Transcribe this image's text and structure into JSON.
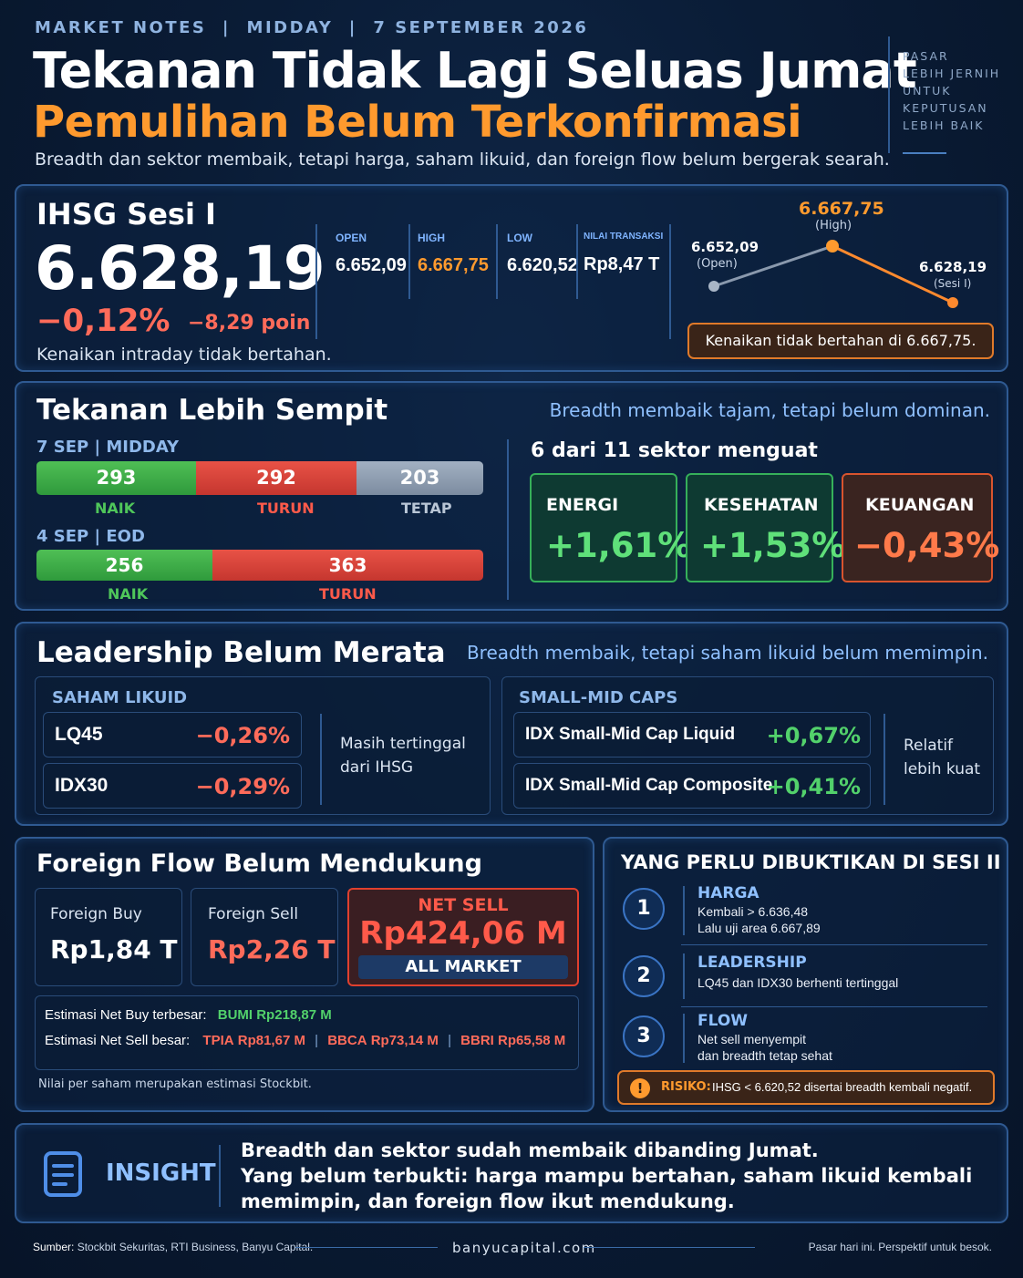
{
  "header": {
    "kicker": "MARKET NOTES  |  MIDDAY  |  7 SEPTEMBER 2026",
    "title": "Tekanan Tidak Lagi Seluas Jumat",
    "subtitle": "Pemulihan Belum Terkonfirmasi",
    "description": "Breadth dan sektor membaik, tetapi harga, saham likuid, dan foreign flow belum bergerak searah.",
    "tagline": [
      "PASAR",
      "LEBIH JERNIH",
      "UNTUK",
      "KEPUTUSAN",
      "LEBIH BAIK"
    ]
  },
  "ihsg": {
    "label": "IHSG Sesi I",
    "value": "6.628,19",
    "change_pct": "−0,12%",
    "change_pts": "−8,29 poin",
    "note": "Kenaikan intraday tidak bertahan.",
    "stats": [
      {
        "label": "OPEN",
        "value": "6.652,09"
      },
      {
        "label": "HIGH",
        "value": "6.667,75"
      },
      {
        "label": "LOW",
        "value": "6.620,52"
      },
      {
        "label": "NILAI TRANSAKSI",
        "value": "Rp8,47 T"
      }
    ],
    "chart": {
      "high_value": "6.667,75",
      "high_label": "(High)",
      "open_value": "6.652,09",
      "open_label": "(Open)",
      "close_value": "6.628,19",
      "close_label": "(Sesi I)",
      "callout": "Kenaikan tidak bertahan di 6.667,75."
    }
  },
  "breadth": {
    "title": "Tekanan Lebih Sempit",
    "subtitle": "Breadth membaik tajam, tetapi belum dominan.",
    "today_label": "7 SEP | MIDDAY",
    "today": [
      {
        "value": 293,
        "label": "NAIK",
        "color": "#3fae4a"
      },
      {
        "value": 292,
        "label": "TURUN",
        "color": "#d9423c"
      },
      {
        "value": 203,
        "label": "TETAP",
        "color": "#8c9cb0"
      }
    ],
    "prev_label": "4 SEP | EOD",
    "prev": [
      {
        "value": 256,
        "label": "NAIK",
        "color": "#3fae4a"
      },
      {
        "value": 363,
        "label": "TURUN",
        "color": "#d9423c"
      }
    ],
    "sector_heading": "6 dari 11 sektor menguat",
    "sectors": [
      {
        "name": "ENERGI",
        "value": "+1,61%"
      },
      {
        "name": "KESEHATAN",
        "value": "+1,53%"
      },
      {
        "name": "KEUANGAN",
        "value": "−0,43%"
      }
    ]
  },
  "leadership": {
    "title": "Leadership Belum Merata",
    "subtitle": "Breadth membaik, tetapi saham likuid belum memimpin.",
    "liquid_heading": "SAHAM LIKUID",
    "liquid": [
      {
        "name": "LQ45",
        "value": "−0,26%"
      },
      {
        "name": "IDX30",
        "value": "−0,29%"
      }
    ],
    "liquid_note": [
      "Masih tertinggal",
      "dari IHSG"
    ],
    "smallmid_heading": "SMALL-MID CAPS",
    "smallmid": [
      {
        "name": "IDX Small-Mid Cap Liquid",
        "value": "+0,67%"
      },
      {
        "name": "IDX Small-Mid Cap Composite",
        "value": "+0,41%"
      }
    ],
    "smallmid_note": [
      "Relatif",
      "lebih kuat"
    ]
  },
  "foreign": {
    "title": "Foreign Flow Belum Mendukung",
    "buy_label": "Foreign Buy",
    "buy_value": "Rp1,84 T",
    "sell_label": "Foreign Sell",
    "sell_value": "Rp2,26 T",
    "net_label": "NET SELL",
    "net_value": "Rp424,06 M",
    "net_scope": "ALL MARKET",
    "netbuy_label": "Estimasi Net Buy terbesar:",
    "netbuy_item": "BUMI Rp218,87 M",
    "netsell_label": "Estimasi Net Sell besar:",
    "netsell_items": [
      {
        "code": "TPIA",
        "value": "Rp81,67 M"
      },
      {
        "code": "BBCA",
        "value": "Rp73,14 M"
      },
      {
        "code": "BBRI",
        "value": "Rp65,58 M"
      }
    ],
    "footnote": "Nilai per saham merupakan estimasi Stockbit."
  },
  "checklist": {
    "title": "YANG PERLU DIBUKTIKAN DI SESI II",
    "items": [
      {
        "num": "1",
        "head": "HARGA",
        "line1": "Kembali > 6.636,48",
        "line2": "Lalu uji area 6.667,89"
      },
      {
        "num": "2",
        "head": "LEADERSHIP",
        "line1": "LQ45 dan IDX30 berhenti tertinggal",
        "line2": ""
      },
      {
        "num": "3",
        "head": "FLOW",
        "line1": "Net sell menyempit",
        "line2": "dan breadth tetap sehat"
      }
    ],
    "risk_label": "RISIKO:",
    "risk_text": "IHSG < 6.620,52 disertai breadth kembali negatif."
  },
  "insight": {
    "label": "INSIGHT",
    "line1": "Breadth dan sektor sudah membaik dibanding Jumat.",
    "line2": "Yang belum terbukti:  harga mampu bertahan, saham likuid kembali",
    "line3": "memimpin, dan foreign flow ikut mendukung."
  },
  "footer": {
    "source_label": "Sumber:",
    "source_text": "Stockbit Sekuritas, RTI Business, Banyu Capital.",
    "site": "banyucapital.com",
    "motto": "Pasar hari ini. Perspektif untuk besok."
  },
  "colors": {
    "accent_orange": "#ff9a2e",
    "positive": "#52d16b",
    "negative": "#ff6b5a",
    "panel_border": "#2f5a92"
  }
}
